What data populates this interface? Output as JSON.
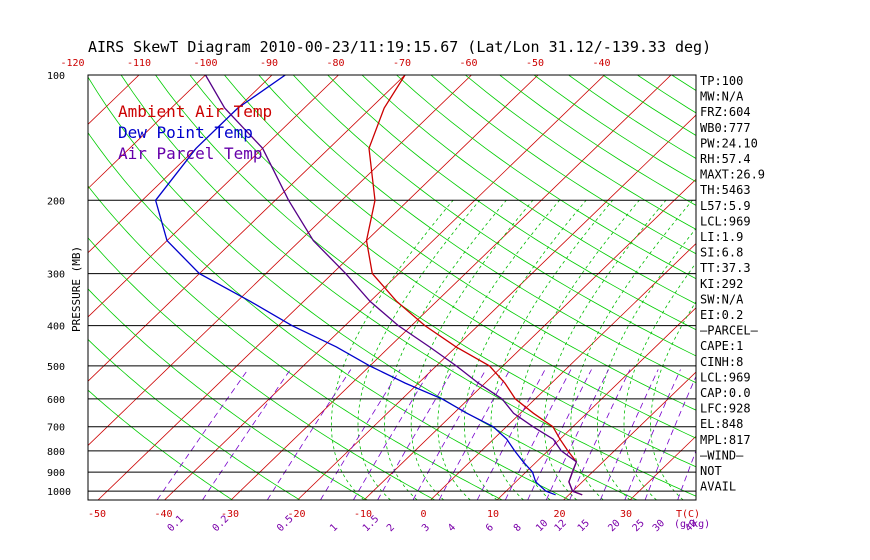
{
  "title": "AIRS SkewT Diagram 2010-00-23/11:19:15.67 (Lat/Lon 31.12/-139.33 deg)",
  "ylabel": "PRESSURE (MB)",
  "xlabel_unit": "T(C)",
  "mix_unit": "(g/kg)",
  "legend": [
    {
      "label": "Ambient Air Temp",
      "color": "#cc0000"
    },
    {
      "label": "Dew Point Temp",
      "color": "#0000cc"
    },
    {
      "label": "Air Parcel Temp",
      "color": "#6600aa"
    }
  ],
  "pressure_labels": [
    "100",
    "200",
    "300",
    "400",
    "500",
    "600",
    "700",
    "800",
    "900",
    "1000"
  ],
  "top_temp_labels": [
    "-120",
    "-110",
    "-100",
    "-90",
    "-80",
    "-70",
    "-60",
    "-50",
    "-40"
  ],
  "bottom_temp_labels": [
    "-50",
    "-40",
    "-30",
    "-20",
    "-10",
    "0",
    "10",
    "20",
    "30"
  ],
  "mixing_ratio_labels": [
    "0.1",
    "0.2",
    "0.5",
    "1",
    "1.5",
    "2",
    "3",
    "4",
    "6",
    "8",
    "10",
    "12",
    "15",
    "20",
    "25",
    "30",
    "40"
  ],
  "indices": [
    "TP:100",
    "MW:N/A",
    "FRZ:604",
    "WB0:777",
    "PW:24.10",
    "RH:57.4",
    "MAXT:26.9",
    "TH:5463",
    "L57:5.9",
    "LCL:969",
    "LI:1.9",
    "SI:6.8",
    "TT:37.3",
    "KI:292",
    "SW:N/A",
    "EI:0.2",
    "—PARCEL—",
    "CAPE:1",
    "CINH:8",
    "LCL:969",
    "CAP:0.0",
    "LFC:928",
    "EL:848",
    "MPL:817",
    "—WIND—",
    "NOT",
    "AVAIL"
  ],
  "colors": {
    "isotherm": "#cc0000",
    "dry_adiabat": "#00cc00",
    "moist_adiabat": "#00bb00",
    "mixing_ratio": "#7700cc",
    "ambient": "#cc0000",
    "dewpoint": "#0000cc",
    "parcel": "#550088"
  },
  "chart_data": {
    "type": "line",
    "title": "AIRS SkewT Diagram 2010-00-23/11:19:15.67 (Lat/Lon 31.12/-139.33 deg)",
    "ylabel": "PRESSURE (MB)",
    "xlabel": "T(C)",
    "y_scale": "log",
    "ylim": [
      1050,
      100
    ],
    "xlim": [
      -50,
      40
    ],
    "series": [
      {
        "name": "Ambient Air Temp",
        "pressure": [
          1020,
          1000,
          950,
          900,
          850,
          800,
          750,
          700,
          650,
          600,
          550,
          500,
          450,
          400,
          350,
          300,
          250,
          200,
          150,
          120,
          100
        ],
        "values": [
          22,
          20,
          18,
          17,
          16,
          13,
          10,
          7,
          2,
          -3,
          -7,
          -12,
          -20,
          -28,
          -36,
          -44,
          -50,
          -55,
          -64,
          -68,
          -70
        ]
      },
      {
        "name": "Dew Point Temp",
        "pressure": [
          1020,
          1000,
          950,
          900,
          850,
          800,
          750,
          700,
          650,
          600,
          550,
          500,
          450,
          400,
          350,
          300,
          250,
          200,
          150,
          120,
          100
        ],
        "values": [
          18,
          16,
          13,
          11,
          8,
          5,
          2,
          -2,
          -8,
          -14,
          -22,
          -30,
          -38,
          -48,
          -58,
          -70,
          -80,
          -88,
          -90,
          -90,
          -88
        ]
      },
      {
        "name": "Air Parcel Temp",
        "pressure": [
          1020,
          1000,
          950,
          900,
          850,
          800,
          750,
          700,
          650,
          600,
          550,
          500,
          450,
          400,
          350,
          300,
          250,
          200,
          150,
          120,
          100
        ],
        "values": [
          22,
          20,
          18,
          17,
          16,
          12,
          9,
          4,
          -1,
          -5,
          -11,
          -17,
          -24,
          -32,
          -40,
          -48,
          -58,
          -68,
          -80,
          -92,
          -100
        ]
      }
    ]
  }
}
